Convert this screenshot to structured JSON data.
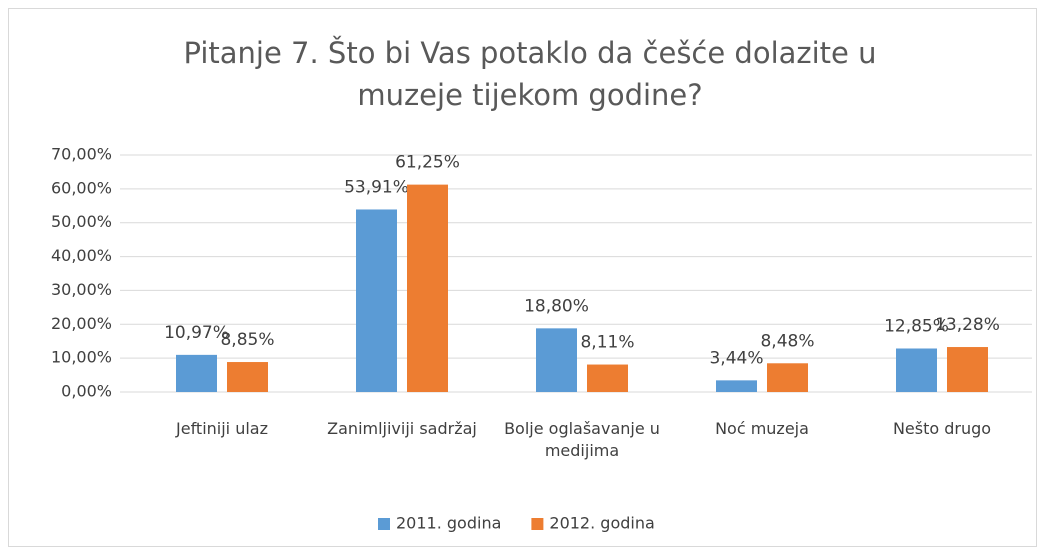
{
  "chart_data": {
    "type": "bar",
    "title": "Pitanje 7. Što bi Vas potaklo da češće dolazite u muzeje tijekom godine?",
    "categories": [
      "Jeftiniji ulaz",
      "Zanimljiviji sadržaj",
      "Bolje oglašavanje u medijima",
      "Noć muzeja",
      "Nešto drugo"
    ],
    "series": [
      {
        "name": "2011. godina",
        "color": "#5b9bd5",
        "values": [
          10.97,
          53.91,
          18.8,
          3.44,
          12.85
        ],
        "value_labels": [
          "10,97%",
          "53,91%",
          "18,80%",
          "3,44%",
          "12,85%"
        ]
      },
      {
        "name": "2012. godina",
        "color": "#ed7d31",
        "values": [
          8.85,
          61.25,
          8.11,
          8.48,
          13.28
        ],
        "value_labels": [
          "8,85%",
          "61,25%",
          "8,11%",
          "8,48%",
          "13,28%"
        ]
      }
    ],
    "ylim": [
      0,
      70
    ],
    "yticks": [
      {
        "value": 0,
        "label": "0,00%"
      },
      {
        "value": 10,
        "label": "10,00%"
      },
      {
        "value": 20,
        "label": "20,00%"
      },
      {
        "value": 30,
        "label": "30,00%"
      },
      {
        "value": 40,
        "label": "40,00%"
      },
      {
        "value": 50,
        "label": "50,00%"
      },
      {
        "value": 60,
        "label": "60,00%"
      },
      {
        "value": 70,
        "label": "70,00%"
      }
    ],
    "grid": true,
    "legend": "bottom"
  }
}
